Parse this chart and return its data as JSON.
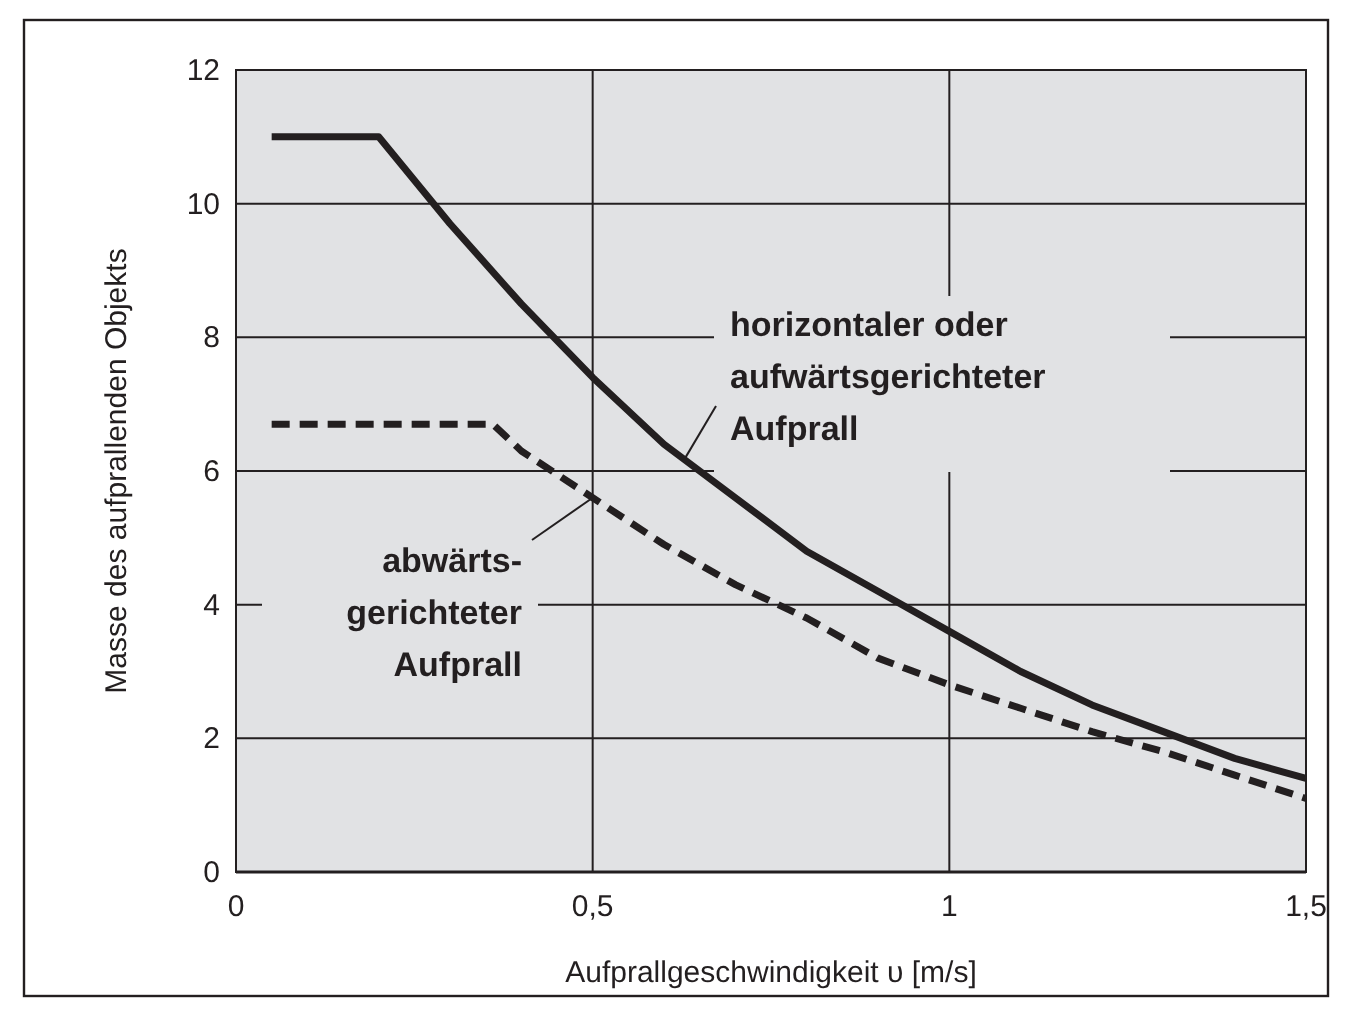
{
  "chart_data": {
    "type": "line",
    "xlabel": "Aufprallgeschwindigkeit υ [m/s]",
    "ylabel": "Masse des aufprallenden Objekts",
    "xlim": [
      0,
      1.5
    ],
    "xticks": [
      0,
      {
        "value": 0.5,
        "label": "0,5"
      },
      1,
      {
        "value": 1.5,
        "label": "1,5"
      }
    ],
    "ylim": [
      0,
      12
    ],
    "yticks": [
      0,
      2,
      4,
      6,
      8,
      10,
      12
    ],
    "grid": true,
    "series": [
      {
        "color": "#231f20",
        "line_style": "solid",
        "x": [
          0.05,
          0.2,
          0.3,
          0.4,
          0.5,
          0.6,
          0.7,
          0.8,
          0.9,
          1.0,
          1.1,
          1.2,
          1.3,
          1.4,
          1.5
        ],
        "values": [
          11,
          11,
          9.7,
          8.5,
          7.4,
          6.4,
          5.6,
          4.8,
          4.2,
          3.6,
          3.0,
          2.5,
          2.1,
          1.7,
          1.4
        ]
      },
      {
        "color": "#231f20",
        "line_style": "dashed",
        "x": [
          0.05,
          0.36,
          0.4,
          0.5,
          0.6,
          0.7,
          0.8,
          0.9,
          1.0,
          1.1,
          1.2,
          1.3,
          1.4,
          1.5
        ],
        "values": [
          6.7,
          6.7,
          6.3,
          5.6,
          4.9,
          4.3,
          3.8,
          3.2,
          2.8,
          2.45,
          2.1,
          1.8,
          1.45,
          1.1
        ]
      }
    ],
    "annotations": [
      {
        "text": "horizontaler oder\naufwärtsgerichteter\nAufprall",
        "x": 0.63,
        "y": 6.2
      },
      {
        "text": "abwärts-\ngerichteter\nAufprall",
        "x": 0.5,
        "y": 5.6
      }
    ]
  }
}
